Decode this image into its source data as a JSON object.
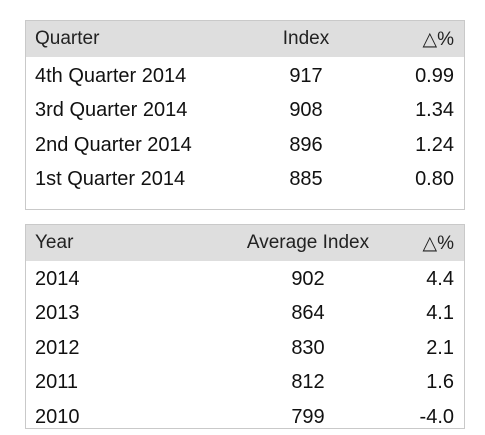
{
  "quarterly": {
    "headers": [
      "Quarter",
      "Index",
      "△%"
    ],
    "rows": [
      [
        "4th Quarter 2014",
        "917",
        "0.99"
      ],
      [
        "3rd Quarter 2014",
        "908",
        "1.34"
      ],
      [
        "2nd Quarter 2014",
        "896",
        "1.24"
      ],
      [
        "1st Quarter 2014",
        "885",
        "0.80"
      ]
    ]
  },
  "annual": {
    "headers": [
      "Year",
      "Average Index",
      "△%"
    ],
    "rows": [
      [
        "2014",
        "902",
        "4.4"
      ],
      [
        "2013",
        "864",
        "4.1"
      ],
      [
        "2012",
        "830",
        "2.1"
      ],
      [
        "2011",
        "812",
        "1.6"
      ],
      [
        "2010",
        "799",
        "-4.0"
      ]
    ]
  },
  "colors": {
    "header_bg": "#dedede",
    "border": "#c9c9c9",
    "text": "#111111"
  }
}
